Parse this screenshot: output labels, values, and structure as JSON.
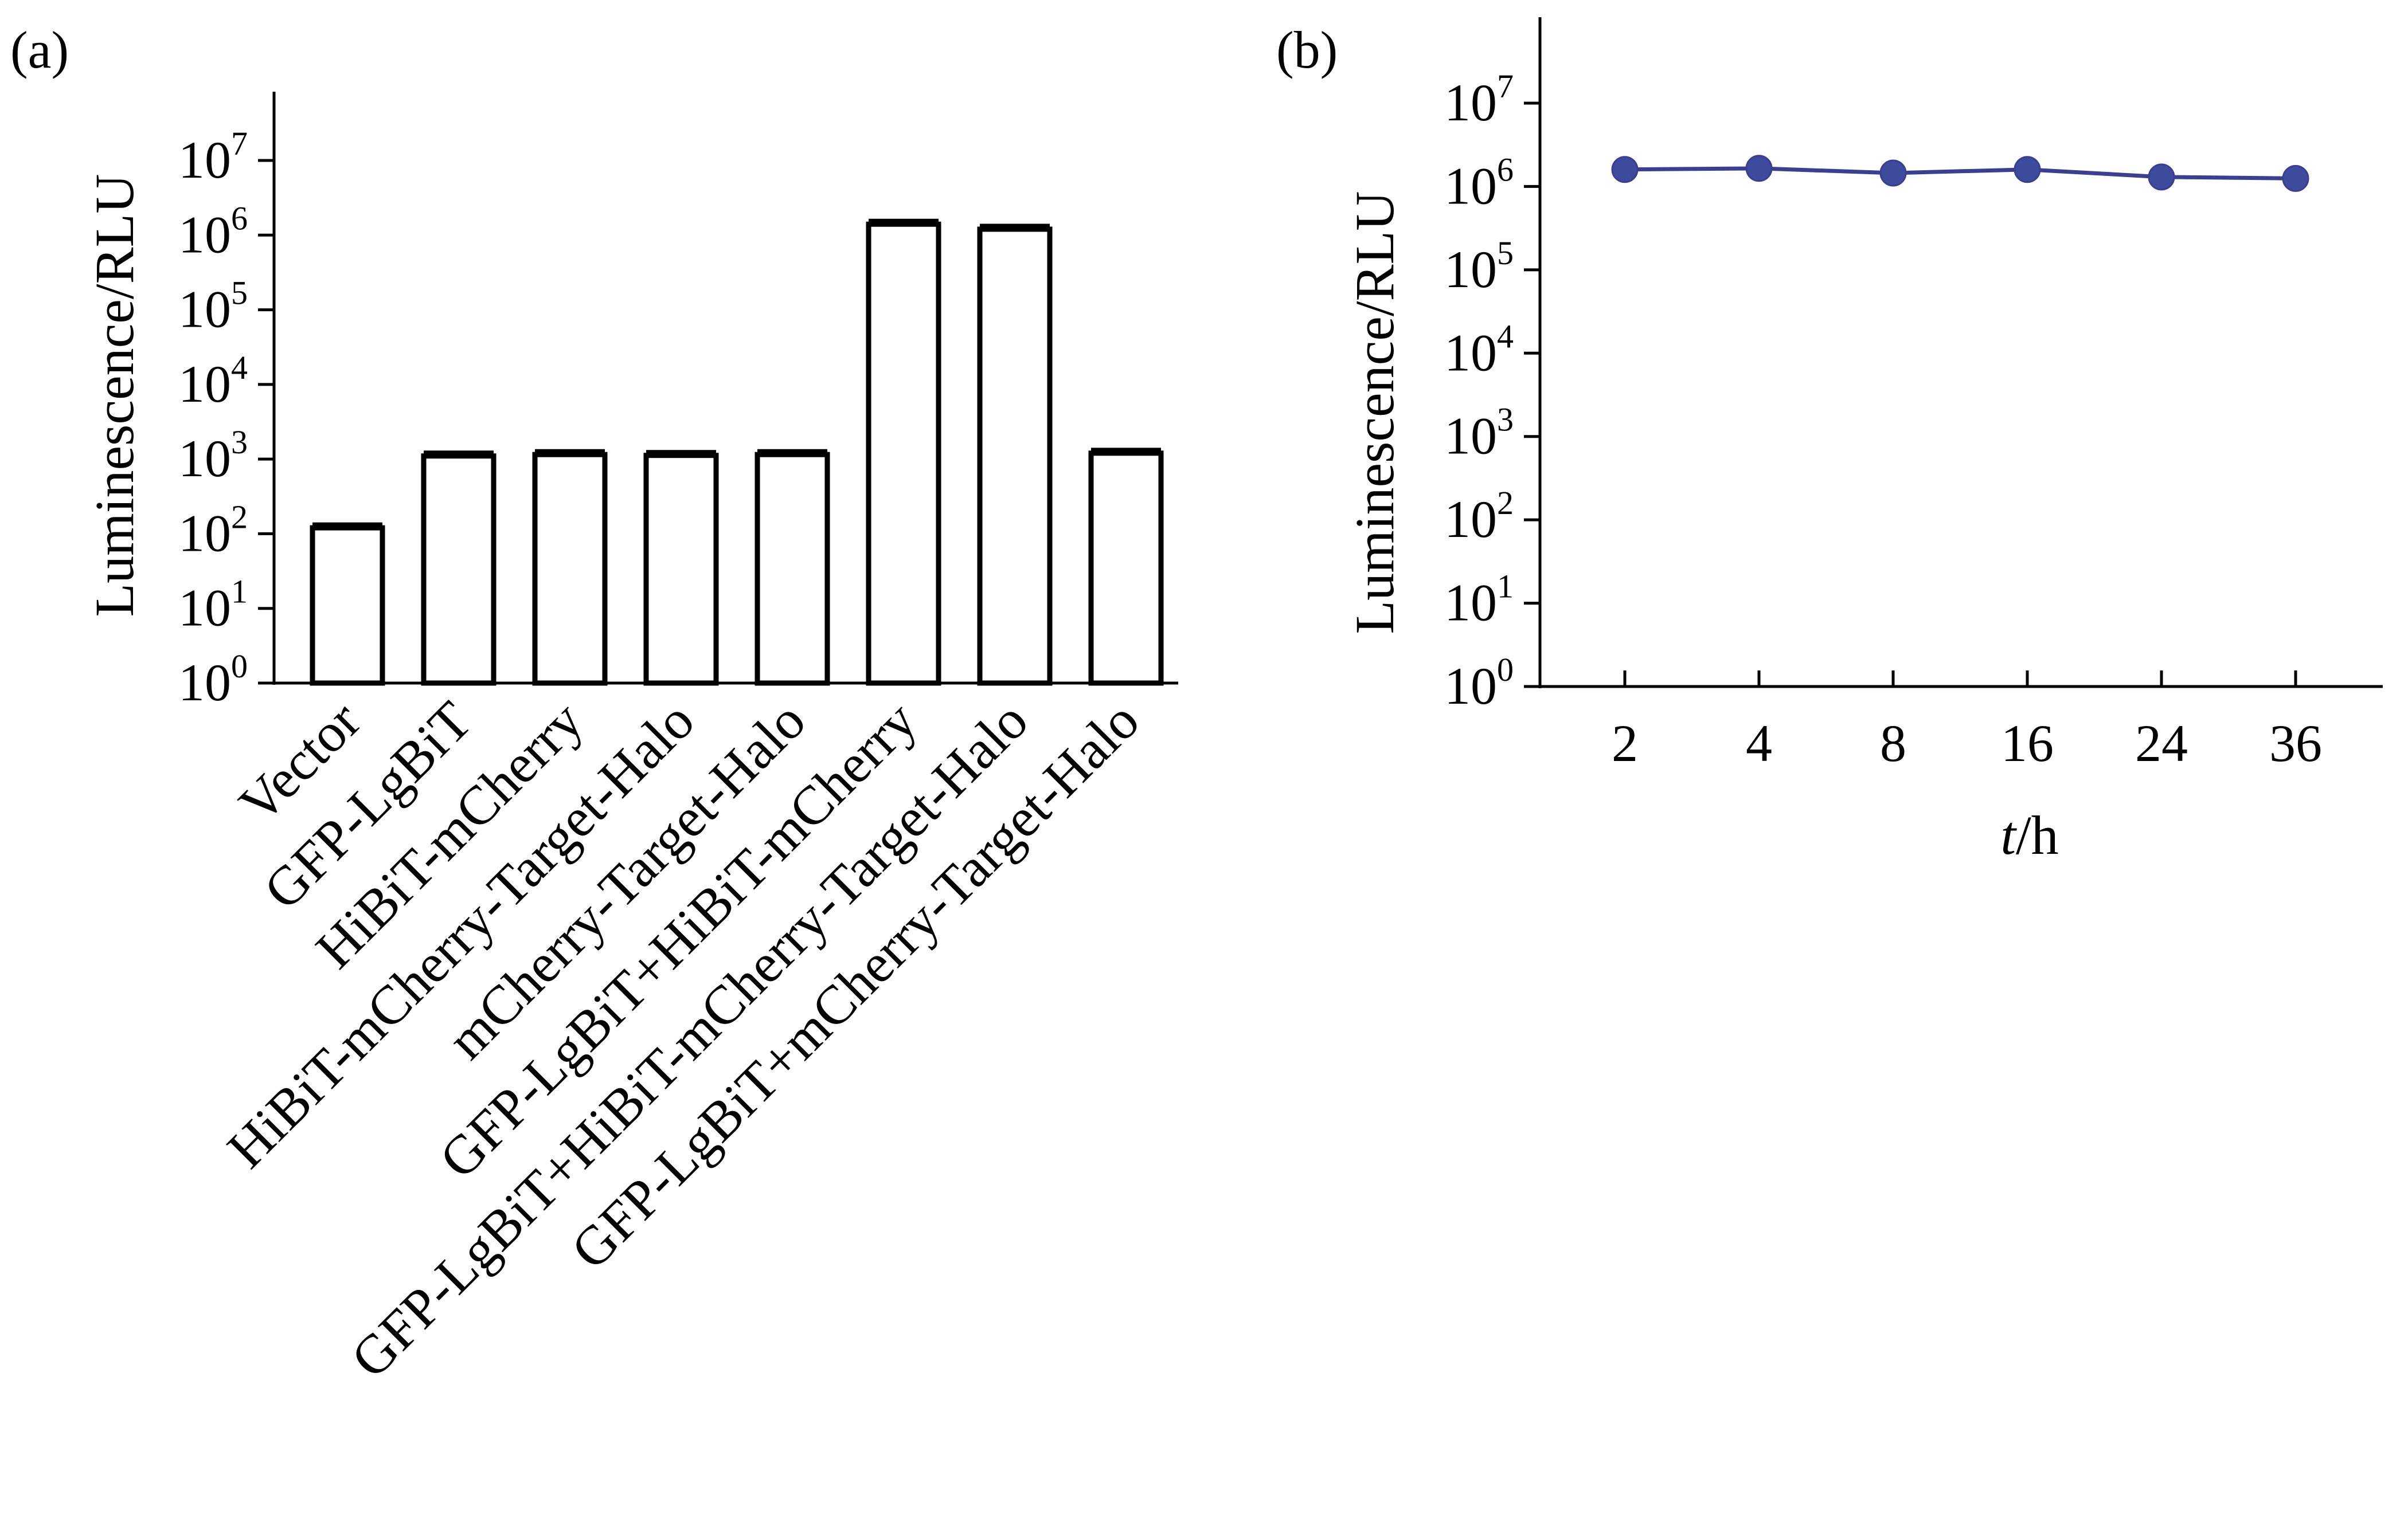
{
  "chart_data": [
    {
      "panel_label": "(a)",
      "type": "bar",
      "ylabel": "Luminescence/RLU",
      "xlabel": "",
      "yscale": "log",
      "ylim": [
        1,
        10000000
      ],
      "yticks": [
        {
          "base": "10",
          "exp": "0"
        },
        {
          "base": "10",
          "exp": "1"
        },
        {
          "base": "10",
          "exp": "2"
        },
        {
          "base": "10",
          "exp": "3"
        },
        {
          "base": "10",
          "exp": "4"
        },
        {
          "base": "10",
          "exp": "5"
        },
        {
          "base": "10",
          "exp": "6"
        },
        {
          "base": "10",
          "exp": "7"
        }
      ],
      "categories": [
        "Vector",
        "GFP-LgBiT",
        "HiBiT-mCherry",
        "HiBiT-mCherry-Target-Halo",
        "mCherry-Target-Halo",
        "GFP-LgBiT+HiBiT-mCherry",
        "GFP-LgBiT+HiBiT-mCherry-Target-Halo",
        "GFP-LgBiT+mCherry-Target-Halo"
      ],
      "values": [
        120,
        1100,
        1150,
        1120,
        1150,
        1400000,
        1200000,
        1200
      ],
      "error_bars": true,
      "grid": false,
      "bar_fill": "#ffffff",
      "bar_edge": "#000000"
    },
    {
      "panel_label": "(b)",
      "type": "line",
      "ylabel": "Luminescence/RLU",
      "xlabel_italic": "t",
      "xlabel_unit": "/h",
      "yscale": "log",
      "ylim": [
        1,
        10000000
      ],
      "yticks": [
        {
          "base": "10",
          "exp": "0"
        },
        {
          "base": "10",
          "exp": "1"
        },
        {
          "base": "10",
          "exp": "2"
        },
        {
          "base": "10",
          "exp": "3"
        },
        {
          "base": "10",
          "exp": "4"
        },
        {
          "base": "10",
          "exp": "5"
        },
        {
          "base": "10",
          "exp": "6"
        },
        {
          "base": "10",
          "exp": "7"
        }
      ],
      "x": [
        "2",
        "4",
        "8",
        "16",
        "24",
        "36"
      ],
      "values": [
        1600000,
        1650000,
        1450000,
        1600000,
        1300000,
        1250000
      ],
      "grid": false,
      "line_color": "#3a3f93",
      "marker_color": "#3e4a9c"
    }
  ]
}
